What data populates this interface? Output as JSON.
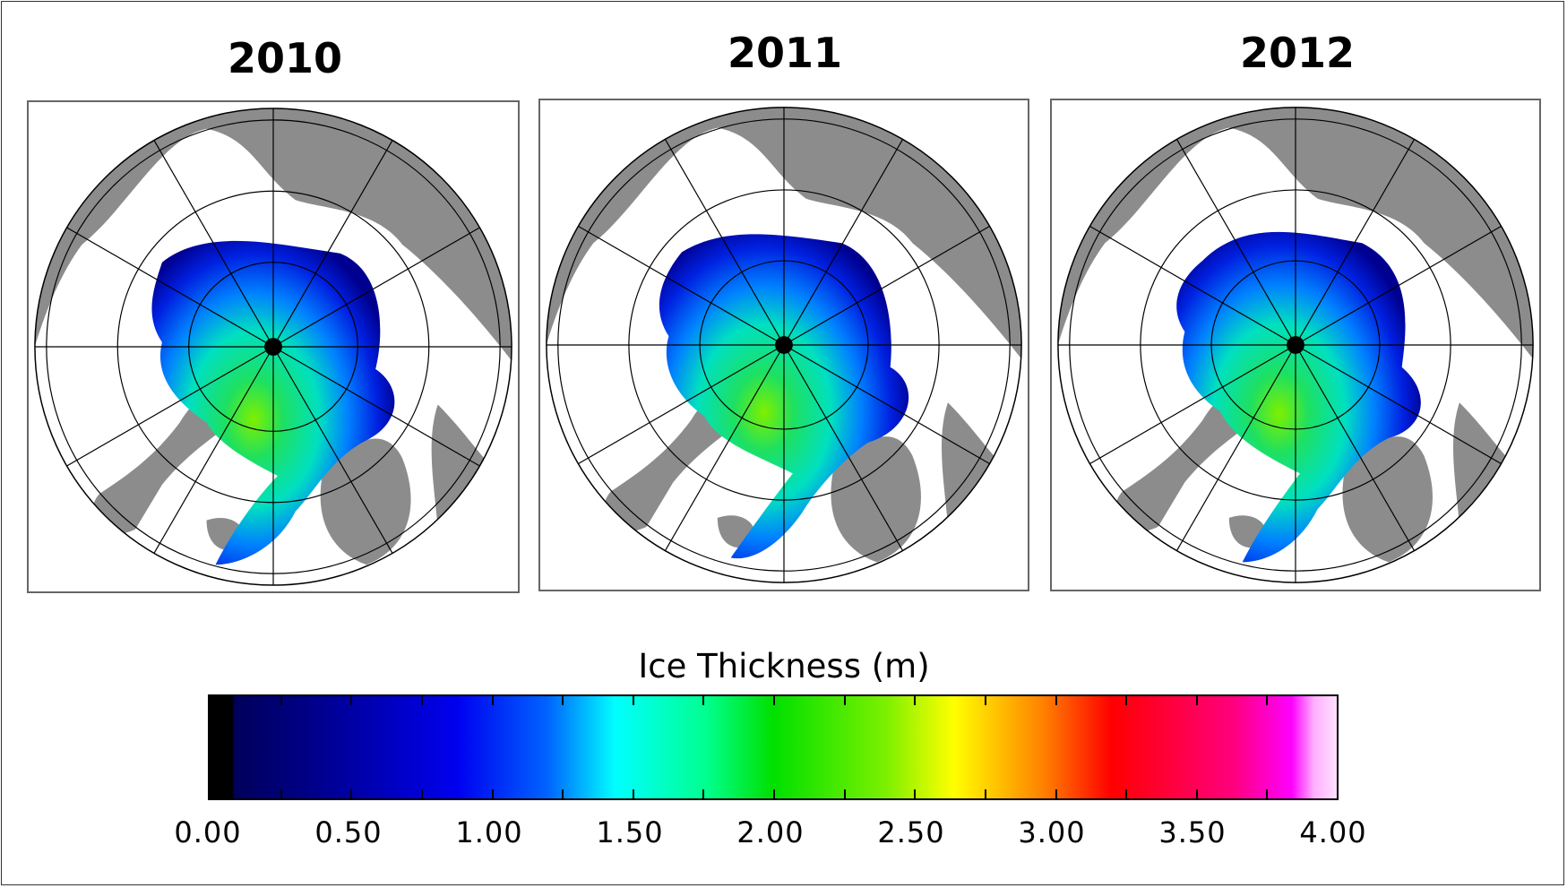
{
  "panels": [
    {
      "year": "2010"
    },
    {
      "year": "2011"
    },
    {
      "year": "2012"
    }
  ],
  "colorbar": {
    "title": "Ice Thickness (m)",
    "range": [
      0,
      4
    ],
    "labels": [
      "0.00",
      "0.50",
      "1.00",
      "1.50",
      "2.00",
      "2.50",
      "3.00",
      "3.50",
      "4.00"
    ],
    "colors": [
      "#000000",
      "#000090",
      "#0000f0",
      "#00ffff",
      "#00e000",
      "#ffff00",
      "#ff0000",
      "#ff00ff",
      "#ffe0ff"
    ]
  },
  "map_colors": {
    "land": "#8c8c8c",
    "ocean": "#ffffff",
    "grid": "#000000"
  }
}
